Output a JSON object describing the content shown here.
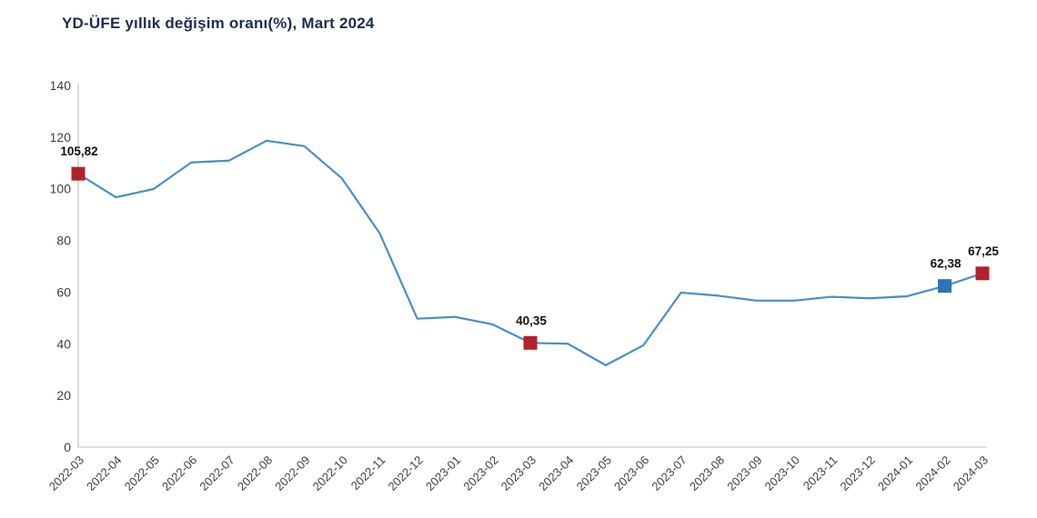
{
  "header": {
    "title": "YD-ÜFE yıllık değişim oranı(%), Mart 2024"
  },
  "chart_data": {
    "type": "line",
    "title": "YD-ÜFE yıllık değişim oranı(%), Mart 2024",
    "xlabel": "",
    "ylabel": "",
    "ylim": [
      0,
      140
    ],
    "ytick_step": 20,
    "grid": false,
    "legend_position": "none",
    "categories": [
      "2022-03",
      "2022-04",
      "2022-05",
      "2022-06",
      "2022-07",
      "2022-08",
      "2022-09",
      "2022-10",
      "2022-11",
      "2022-12",
      "2023-01",
      "2023-02",
      "2023-03",
      "2023-04",
      "2023-05",
      "2023-06",
      "2023-07",
      "2023-08",
      "2023-09",
      "2023-10",
      "2023-11",
      "2023-12",
      "2024-01",
      "2024-02",
      "2024-03"
    ],
    "series": [
      {
        "name": "YD-ÜFE yıllık değişim oranı (%)",
        "values": [
          105.82,
          96.7,
          99.9,
          110.2,
          110.9,
          118.6,
          116.5,
          104.0,
          82.8,
          49.7,
          50.4,
          47.5,
          40.35,
          40.0,
          31.7,
          39.4,
          59.8,
          58.6,
          56.7,
          56.7,
          58.2,
          57.6,
          58.4,
          62.38,
          67.25
        ]
      }
    ],
    "annotations": [
      {
        "index": 0,
        "label": "105,82",
        "marker_color": "#b1222a"
      },
      {
        "index": 12,
        "label": "40,35",
        "marker_color": "#b1222a"
      },
      {
        "index": 23,
        "label": "62,38",
        "marker_color": "#2e74b6"
      },
      {
        "index": 24,
        "label": "67,25",
        "marker_color": "#b1222a"
      }
    ],
    "colors": {
      "line": "#4a8ec7",
      "marker_red": "#b1222a",
      "marker_blue": "#2e74b6",
      "axis": "#d9d9d9",
      "tick_label": "#3f3f3f",
      "title": "#1e2c4f"
    }
  }
}
